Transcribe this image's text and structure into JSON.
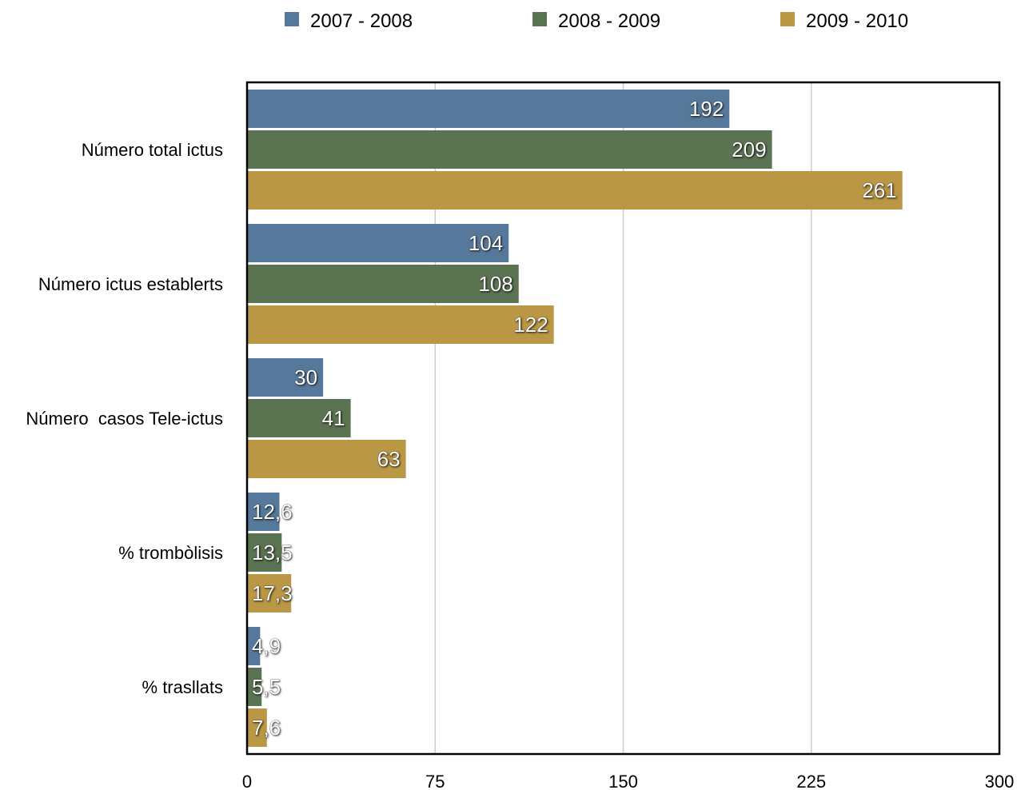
{
  "chart_data": {
    "type": "bar",
    "orientation": "horizontal",
    "categories": [
      "Número total ictus",
      "Número ictus establerts",
      "Número  casos Tele-ictus",
      "% trombòlisis",
      "% trasllats"
    ],
    "series": [
      {
        "name": "2007 - 2008",
        "color": "#56789a",
        "values": [
          192,
          104,
          30,
          12.6,
          4.9
        ],
        "labels": [
          "192",
          "104",
          "30",
          "12,6",
          "4,9"
        ]
      },
      {
        "name": "2008 - 2009",
        "color": "#5a7350",
        "values": [
          209,
          108,
          41,
          13.5,
          5.5
        ],
        "labels": [
          "209",
          "108",
          "41",
          "13,5",
          "5,5"
        ]
      },
      {
        "name": "2009 - 2010",
        "color": "#ba9744",
        "values": [
          261,
          122,
          63,
          17.3,
          7.6
        ],
        "labels": [
          "261",
          "122",
          "63",
          "17,3",
          "7,6"
        ]
      }
    ],
    "xlim": [
      0,
      300
    ],
    "xticks": [
      "0",
      "75",
      "150",
      "225",
      "300"
    ],
    "grid": true,
    "legend_position": "top"
  }
}
